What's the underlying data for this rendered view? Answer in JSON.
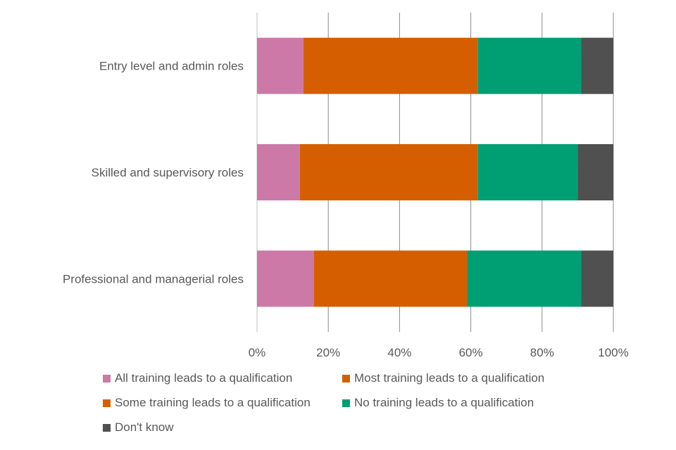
{
  "chart_data": {
    "type": "bar",
    "orientation": "horizontal",
    "stacked": true,
    "percent_stacked": true,
    "categories": [
      "Entry level and admin roles",
      "Skilled and supervisory roles",
      "Professional and managerial roles"
    ],
    "series": [
      {
        "name": "All training leads to a qualification",
        "color": "#CC79A7",
        "values": [
          13,
          12,
          16
        ]
      },
      {
        "name": "Most training leads to a qualification",
        "color": "#D55E00",
        "values": [
          0,
          0,
          0
        ]
      },
      {
        "name": "Some training leads to a qualification",
        "color": "#D55E00",
        "values": [
          49,
          50,
          43
        ]
      },
      {
        "name": "No training leads to a qualification",
        "color": "#009E73",
        "values": [
          29,
          28,
          32
        ]
      },
      {
        "name": "Don't know",
        "color": "#505050",
        "values": [
          9,
          10,
          9
        ]
      }
    ],
    "xlim": [
      0,
      100
    ],
    "x_ticks": [
      "0%",
      "20%",
      "40%",
      "60%",
      "80%",
      "100%"
    ],
    "grid": true,
    "legend_position": "bottom",
    "title": "",
    "xlabel": "",
    "ylabel": ""
  }
}
